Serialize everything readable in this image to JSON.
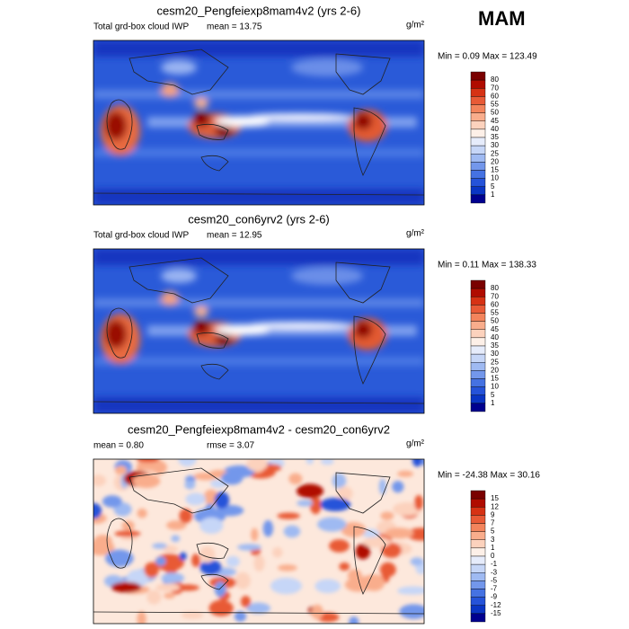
{
  "header": {
    "season": "MAM"
  },
  "panels": [
    {
      "title": "cesm20_Pengfeiexp8mam4v2 (yrs 2-6)",
      "left_label": "Total grd-box cloud IWP",
      "stat1": "mean =  13.75",
      "units": "g/m²",
      "minmax": "Min =  0.09 Max = 123.49",
      "colorbar": {
        "labels": [
          "80",
          "70",
          "60",
          "55",
          "50",
          "45",
          "40",
          "35",
          "30",
          "25",
          "20",
          "15",
          "10",
          "5",
          "1"
        ],
        "colors": [
          "#7a0000",
          "#b00c00",
          "#d63214",
          "#e85a36",
          "#f3845c",
          "#f9ad8c",
          "#fcd2bd",
          "#fdf0e8",
          "#e6ecfb",
          "#c6d6f7",
          "#9fbaf2",
          "#7397eb",
          "#4572e2",
          "#2553d9",
          "#0a35c4",
          "#00008f"
        ]
      },
      "map": "iwp"
    },
    {
      "title": "cesm20_con6yrv2 (yrs 2-6)",
      "left_label": "Total grd-box cloud IWP",
      "stat1": "mean =  12.95",
      "units": "g/m²",
      "minmax": "Min =  0.11 Max = 138.33",
      "colorbar": {
        "labels": [
          "80",
          "70",
          "60",
          "55",
          "50",
          "45",
          "40",
          "35",
          "30",
          "25",
          "20",
          "15",
          "10",
          "5",
          "1"
        ],
        "colors": [
          "#7a0000",
          "#b00c00",
          "#d63214",
          "#e85a36",
          "#f3845c",
          "#f9ad8c",
          "#fcd2bd",
          "#fdf0e8",
          "#e6ecfb",
          "#c6d6f7",
          "#9fbaf2",
          "#7397eb",
          "#4572e2",
          "#2553d9",
          "#0a35c4",
          "#00008f"
        ]
      },
      "map": "iwp"
    },
    {
      "title": "cesm20_Pengfeiexp8mam4v2 - cesm20_con6yrv2",
      "stat1": "mean =  0.80",
      "stat2": "rmse =  3.07",
      "units": "g/m²",
      "minmax": "Min = -24.38 Max =  30.16",
      "colorbar": {
        "labels": [
          "15",
          "12",
          "9",
          "7",
          "5",
          "3",
          "1",
          "0",
          "-1",
          "-3",
          "-5",
          "-7",
          "-9",
          "-12",
          "-15"
        ],
        "colors": [
          "#7a0000",
          "#b00c00",
          "#d63214",
          "#e85a36",
          "#f3845c",
          "#f9ad8c",
          "#fcd2bd",
          "#fdf0e8",
          "#e6ecfb",
          "#c6d6f7",
          "#9fbaf2",
          "#7397eb",
          "#4572e2",
          "#2553d9",
          "#0a35c4",
          "#00008f"
        ]
      },
      "map": "diff"
    }
  ]
}
